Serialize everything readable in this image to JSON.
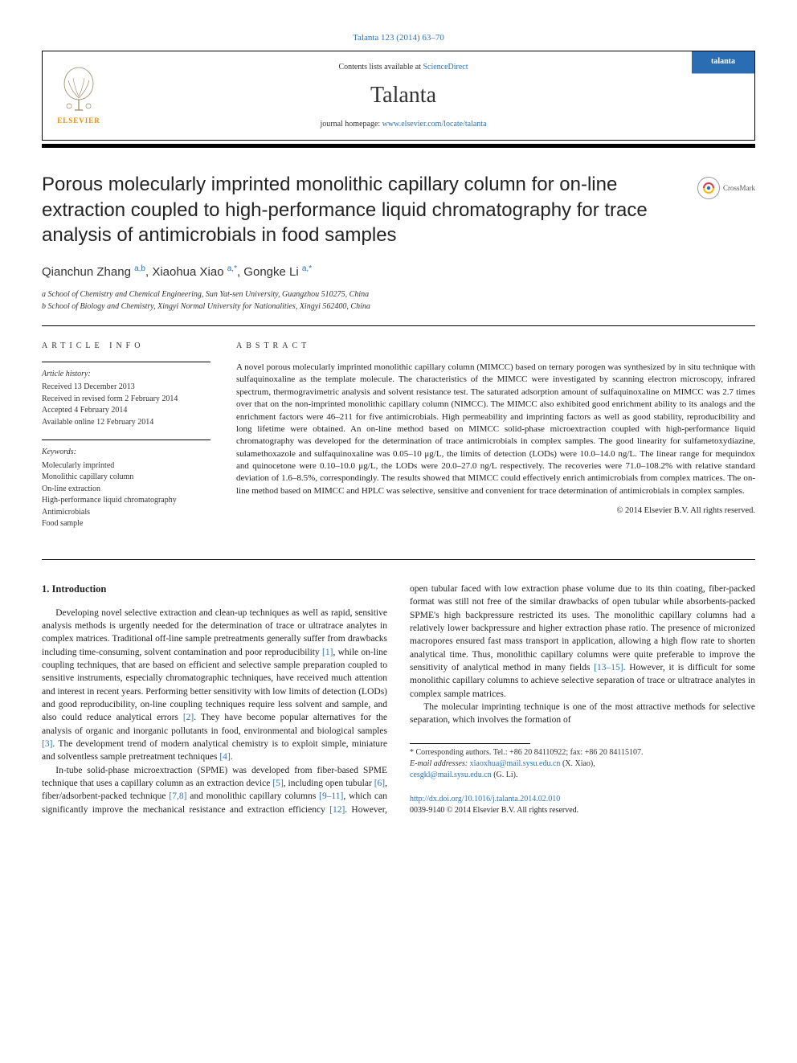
{
  "journal_ref": "Talanta 123 (2014) 63–70",
  "header": {
    "contents_prefix": "Contents lists available at ",
    "contents_link": "ScienceDirect",
    "journal_name": "Talanta",
    "homepage_prefix": "journal homepage: ",
    "homepage_link": "www.elsevier.com/locate/talanta",
    "publisher_label": "ELSEVIER",
    "cover_label": "talanta"
  },
  "crossmark_label": "CrossMark",
  "title": "Porous molecularly imprinted monolithic capillary column for on-line extraction coupled to high-performance liquid chromatography for trace analysis of antimicrobials in food samples",
  "authors_html": "Qianchun Zhang <sup>a,b</sup>, Xiaohua Xiao <sup>a,*</sup>, Gongke Li <sup>a,*</sup>",
  "affiliations": {
    "a": "a School of Chemistry and Chemical Engineering, Sun Yat-sen University, Guangzhou 510275, China",
    "b": "b School of Biology and Chemistry, Xingyi Normal University for Nationalities, Xingyi 562400, China"
  },
  "labels": {
    "article_info": "ARTICLE INFO",
    "abstract": "ABSTRACT",
    "history": "Article history:",
    "keywords": "Keywords:"
  },
  "history": {
    "received": "Received 13 December 2013",
    "revised": "Received in revised form 2 February 2014",
    "accepted": "Accepted 4 February 2014",
    "online": "Available online 12 February 2014"
  },
  "keywords": [
    "Molecularly imprinted",
    "Monolithic capillary column",
    "On-line extraction",
    "High-performance liquid chromatography",
    "Antimicrobials",
    "Food sample"
  ],
  "abstract": "A novel porous molecularly imprinted monolithic capillary column (MIMCC) based on ternary porogen was synthesized by in situ technique with sulfaquinoxaline as the template molecule. The characteristics of the MIMCC were investigated by scanning electron microscopy, infrared spectrum, thermogravimetric analysis and solvent resistance test. The saturated adsorption amount of sulfaquinoxaline on MIMCC was 2.7 times over that on the non-imprinted monolithic capillary column (NIMCC). The MIMCC also exhibited good enrichment ability to its analogs and the enrichment factors were 46–211 for five antimicrobials. High permeability and imprinting factors as well as good stability, reproducibility and long lifetime were obtained. An on-line method based on MIMCC solid-phase microextraction coupled with high-performance liquid chromatography was developed for the determination of trace antimicrobials in complex samples. The good linearity for sulfametoxydiazine, sulamethoxazole and sulfaquinoxaline was 0.05–10 μg/L, the limits of detection (LODs) were 10.0–14.0 ng/L. The linear range for mequindox and quinocetone were 0.10–10.0 μg/L, the LODs were 20.0–27.0 ng/L respectively. The recoveries were 71.0–108.2% with relative standard deviation of 1.6–8.5%, correspondingly. The results showed that MIMCC could effectively enrich antimicrobials from complex matrices. The on-line method based on MIMCC and HPLC was selective, sensitive and convenient for trace determination of antimicrobials in complex samples.",
  "copyright": "© 2014 Elsevier B.V. All rights reserved.",
  "intro_heading": "1. Introduction",
  "body": {
    "p1_a": "Developing novel selective extraction and clean-up techniques as well as rapid, sensitive analysis methods is urgently needed for the determination of trace or ultratrace analytes in complex matrices. Traditional off-line sample pretreatments generally suffer from drawbacks including time-consuming, solvent contamination and poor reproducibility ",
    "r1": "[1]",
    "p1_b": ", while on-line coupling techniques, that are based on efficient and selective sample preparation coupled to sensitive instruments, especially chromatographic techniques, have received much attention and interest in recent years. Performing better sensitivity with low limits of detection (LODs) and good reproducibility, on-line coupling techniques require less solvent and sample, and also could reduce analytical errors ",
    "r2": "[2]",
    "p1_c": ". They have become popular alternatives for the analysis of organic and inorganic pollutants in food, environmental and biological samples ",
    "r3": "[3]",
    "p1_d": ". The development trend of modern analytical chemistry is to exploit simple, miniature and solventless sample pretreatment techniques ",
    "r4": "[4]",
    "p1_e": ".",
    "p2_a": "In-tube solid-phase microextraction (SPME) was developed from fiber-based SPME technique that uses a capillary column as an extraction device ",
    "r5": "[5]",
    "p2_b": ", including open tubular ",
    "r6": "[6]",
    "p2_c": ", fiber/adsorbent-packed technique ",
    "r7": "[7,8]",
    "p2_d": " and monolithic capillary columns ",
    "r8": "[9–11]",
    "p2_e": ", which can significantly improve the mechanical resistance and extraction efficiency ",
    "r9": "[12]",
    "p2_f": ". However, open tubular faced with low extraction phase volume due to its thin coating, fiber-packed format was still not free of the similar drawbacks of open tubular while absorbents-packed SPME's high backpressure restricted its uses. The monolithic capillary columns had a relatively lower backpressure and higher extraction phase ratio. The presence of micronized macropores ensured fast mass transport in application, allowing a high flow rate to shorten analytical time. Thus, monolithic capillary columns were quite preferable to improve the sensitivity of analytical method in many fields ",
    "r10": "[13–15]",
    "p2_g": ". However, it is difficult for some monolithic capillary columns to achieve selective separation of trace or ultratrace analytes in complex sample matrices.",
    "p3": "The molecular imprinting technique is one of the most attractive methods for selective separation, which involves the formation of"
  },
  "footnote": {
    "corresponding": "* Corresponding authors. Tel.: +86 20 84110922; fax: +86 20 84115107.",
    "email_label": "E-mail addresses: ",
    "email1": "xiaoxhua@mail.sysu.edu.cn",
    "email1_suffix": " (X. Xiao),",
    "email2": "cesgkl@mail.sysu.edu.cn",
    "email2_suffix": " (G. Li)."
  },
  "doi": {
    "link": "http://dx.doi.org/10.1016/j.talanta.2014.02.010",
    "issn": "0039-9140 © 2014 Elsevier B.V. All rights reserved."
  },
  "colors": {
    "link": "#2c72b8",
    "elsevier": "#ed8b00",
    "cover_bg": "#2a6db3"
  }
}
